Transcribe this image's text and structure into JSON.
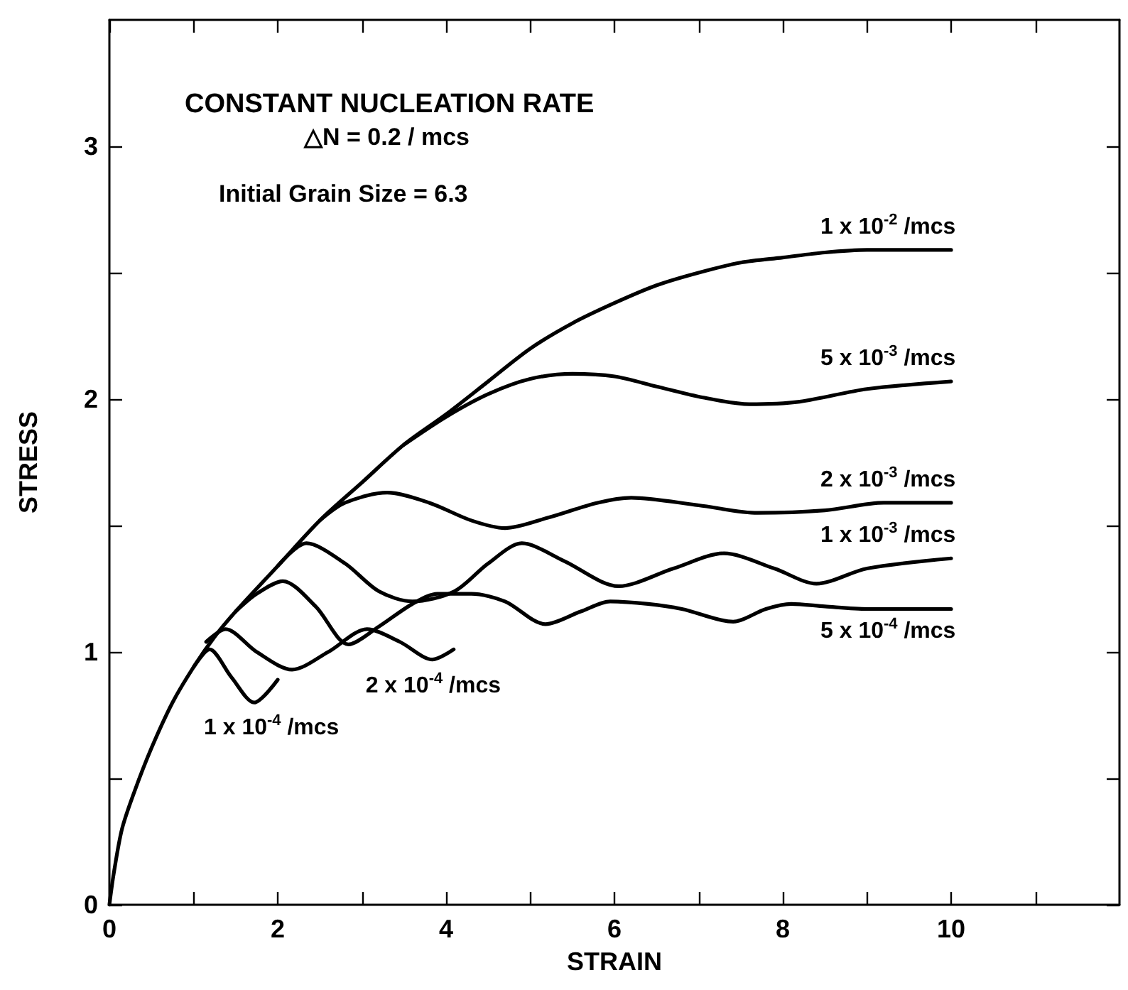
{
  "chart_data": {
    "type": "line",
    "title": "CONSTANT NUCLEATION RATE",
    "subtitle": "△N = 0.2 / mcs",
    "annotations": [
      "Initial Grain Size = 6.3"
    ],
    "xlabel": "STRAIN",
    "ylabel": "STRESS",
    "xlim": [
      0,
      12
    ],
    "ylim": [
      0,
      3.5
    ],
    "xticks": [
      0,
      {
        "value": 1,
        "label": null
      },
      2,
      {
        "value": 3,
        "label": null
      },
      4,
      {
        "value": 5,
        "label": null
      },
      6,
      {
        "value": 7,
        "label": null
      },
      8,
      {
        "value": 9,
        "label": null
      },
      10,
      {
        "value": 11,
        "label": null
      }
    ],
    "yticks": [
      0,
      {
        "value": 0.5,
        "label": null
      },
      1,
      {
        "value": 1.5,
        "label": null
      },
      2,
      {
        "value": 2.5,
        "label": null
      },
      3
    ],
    "grid": false,
    "legend": false,
    "marker": "none",
    "line_style": "solid",
    "series": [
      {
        "name": "1 x 10$^{-2}$ /mcs",
        "color": "#000000",
        "x": [
          0,
          0.05,
          0.15,
          0.3,
          0.5,
          0.75,
          1,
          1.25,
          1.5,
          2,
          2.5,
          3,
          3.5,
          4,
          4.5,
          5,
          5.5,
          6,
          6.5,
          7,
          7.5,
          8,
          8.5,
          9,
          9.5,
          10
        ],
        "values": [
          0,
          0.12,
          0.3,
          0.45,
          0.62,
          0.8,
          0.94,
          1.06,
          1.16,
          1.34,
          1.52,
          1.67,
          1.82,
          1.94,
          2.07,
          2.2,
          2.3,
          2.38,
          2.45,
          2.5,
          2.54,
          2.56,
          2.58,
          2.59,
          2.59,
          2.59
        ]
      },
      {
        "name": "5 x 10$^{-3}$ /mcs",
        "color": "#000000",
        "x": [
          3.5,
          4,
          4.5,
          5,
          5.5,
          6,
          6.5,
          7,
          7.6,
          8.2,
          9,
          10
        ],
        "values": [
          1.82,
          1.93,
          2.02,
          2.08,
          2.1,
          2.09,
          2.05,
          2.01,
          1.98,
          1.99,
          2.04,
          2.07
        ]
      },
      {
        "name": "2 x 10$^{-3}$ /mcs",
        "color": "#000000",
        "x": [
          2.5,
          2.8,
          3.3,
          3.8,
          4.3,
          4.7,
          5.2,
          5.8,
          6.2,
          7,
          7.7,
          8.5,
          9.2,
          10
        ],
        "values": [
          1.52,
          1.59,
          1.63,
          1.59,
          1.52,
          1.49,
          1.53,
          1.59,
          1.61,
          1.58,
          1.55,
          1.56,
          1.59,
          1.59
        ]
      },
      {
        "name": "1 x 10$^{-3}$ /mcs",
        "color": "#000000",
        "x": [
          2,
          2.34,
          2.8,
          3.2,
          3.6,
          4.1,
          4.5,
          4.9,
          5.4,
          6.05,
          6.7,
          7.3,
          7.9,
          8.4,
          9,
          10
        ],
        "values": [
          1.34,
          1.43,
          1.35,
          1.24,
          1.2,
          1.24,
          1.35,
          1.43,
          1.36,
          1.26,
          1.33,
          1.39,
          1.33,
          1.27,
          1.33,
          1.37
        ]
      },
      {
        "name": "5 x 10$^{-4}$ /mcs",
        "color": "#000000",
        "x": [
          1.5,
          1.75,
          2.06,
          2.45,
          2.84,
          3.2,
          3.6,
          3.9,
          4.3,
          4.7,
          5.18,
          5.6,
          5.95,
          6.4,
          6.8,
          7.41,
          7.8,
          8.1,
          8.5,
          9,
          10
        ],
        "values": [
          1.16,
          1.23,
          1.28,
          1.18,
          1.03,
          1.1,
          1.19,
          1.23,
          1.23,
          1.2,
          1.11,
          1.16,
          1.2,
          1.19,
          1.17,
          1.12,
          1.17,
          1.19,
          1.18,
          1.17,
          1.17
        ]
      },
      {
        "name": "2 x 10$^{-4}$ /mcs",
        "color": "#000000",
        "x": [
          1.15,
          1.38,
          1.75,
          2.17,
          2.6,
          3.06,
          3.45,
          3.84,
          4.09
        ],
        "values": [
          1.04,
          1.09,
          1.0,
          0.93,
          1.0,
          1.09,
          1.04,
          0.97,
          1.01
        ]
      },
      {
        "name": "1 x 10$^{-4}$ /mcs",
        "color": "#000000",
        "x": [
          1.0,
          1.19,
          1.45,
          1.72,
          2.0
        ],
        "values": [
          0.94,
          1.01,
          0.9,
          0.8,
          0.89
        ]
      }
    ]
  }
}
